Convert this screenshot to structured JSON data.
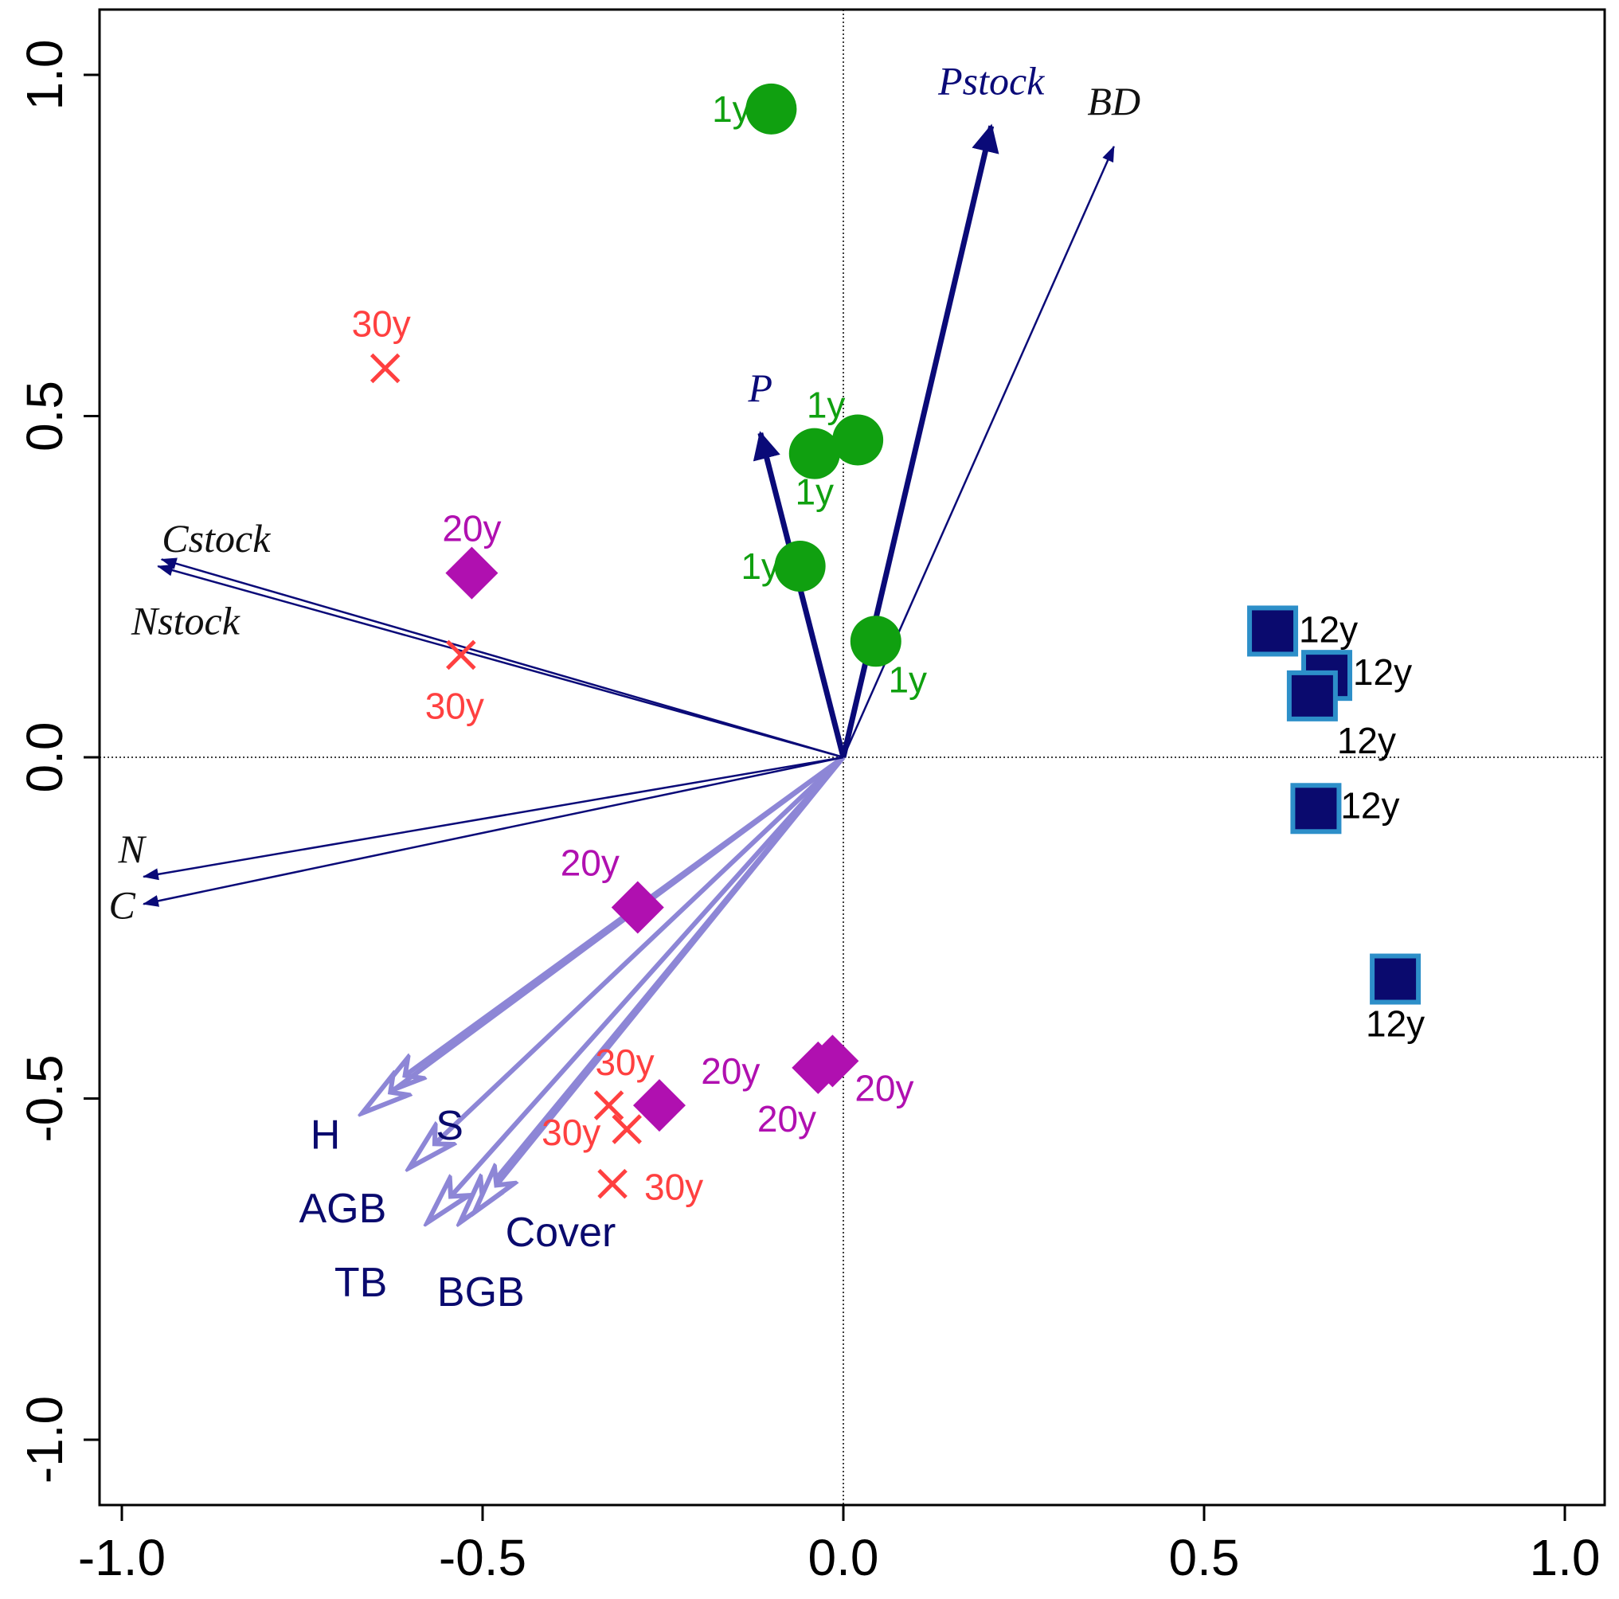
{
  "chart_data": {
    "type": "scatter",
    "title": "",
    "xlabel": "",
    "ylabel": "",
    "xlim": [
      -1.03,
      1.05
    ],
    "ylim": [
      -1.03,
      1.03
    ],
    "x_ticks": [
      -1.0,
      -0.5,
      0.0,
      0.5,
      1.0
    ],
    "x_tick_labels": [
      "-1.0",
      "-0.5",
      "0.0",
      "0.5",
      "1.0"
    ],
    "y_ticks": [
      -1.0,
      -0.5,
      0.0,
      0.5,
      1.0
    ],
    "y_tick_labels": [
      "-1.0",
      "-0.5",
      "0.0",
      "0.5",
      "1.0"
    ],
    "reference_lines": {
      "x": 0.0,
      "y": 0.0
    },
    "colors": {
      "group_1y": "#10a010",
      "group_12y": "#0a0a6e",
      "group_12y_edge": "#2d8fc9",
      "group_20y": "#b010b0",
      "group_30y": "#ff4040",
      "env_arrow": "#0a0a78",
      "veg_arrow": "#8d86d6"
    },
    "series": [
      {
        "name": "1y",
        "marker": "circle",
        "points": [
          {
            "x": -0.1,
            "y": 0.95,
            "label": "1y"
          },
          {
            "x": 0.02,
            "y": 0.465,
            "label": "1y"
          },
          {
            "x": -0.04,
            "y": 0.445,
            "label": "1y"
          },
          {
            "x": -0.06,
            "y": 0.28,
            "label": "1y"
          },
          {
            "x": 0.045,
            "y": 0.17,
            "label": "1y"
          }
        ]
      },
      {
        "name": "12y",
        "marker": "square",
        "points": [
          {
            "x": 0.595,
            "y": 0.185,
            "label": "12y"
          },
          {
            "x": 0.67,
            "y": 0.12,
            "label": "12y"
          },
          {
            "x": 0.65,
            "y": 0.09,
            "label": "12y"
          },
          {
            "x": 0.655,
            "y": -0.075,
            "label": "12y"
          },
          {
            "x": 0.765,
            "y": -0.325,
            "label": "12y"
          }
        ]
      },
      {
        "name": "20y",
        "marker": "diamond",
        "points": [
          {
            "x": -0.515,
            "y": 0.27,
            "label": "20y"
          },
          {
            "x": -0.285,
            "y": -0.22,
            "label": "20y"
          },
          {
            "x": -0.035,
            "y": -0.455,
            "label": "20y"
          },
          {
            "x": -0.015,
            "y": -0.445,
            "label": "20y"
          },
          {
            "x": -0.255,
            "y": -0.51,
            "label": "20y"
          }
        ]
      },
      {
        "name": "30y",
        "marker": "x",
        "points": [
          {
            "x": -0.635,
            "y": 0.57,
            "label": "30y"
          },
          {
            "x": -0.53,
            "y": 0.15,
            "label": "30y"
          },
          {
            "x": -0.325,
            "y": -0.51,
            "label": "30y"
          },
          {
            "x": -0.3,
            "y": -0.545,
            "label": "30y"
          },
          {
            "x": -0.32,
            "y": -0.625,
            "label": "30y"
          }
        ]
      }
    ],
    "env_vectors": [
      {
        "name": "Pstock",
        "x": 0.205,
        "y": 0.925,
        "bold": true
      },
      {
        "name": "BD",
        "x": 0.375,
        "y": 0.895,
        "bold": false
      },
      {
        "name": "P",
        "x": -0.115,
        "y": 0.475,
        "bold": true
      },
      {
        "name": "Cstock",
        "x": -0.95,
        "y": 0.28,
        "bold": false
      },
      {
        "name": "Nstock",
        "x": -0.945,
        "y": 0.29,
        "bold": false
      },
      {
        "name": "N",
        "x": -0.97,
        "y": -0.175,
        "bold": false
      },
      {
        "name": "C",
        "x": -0.97,
        "y": -0.215,
        "bold": false
      }
    ],
    "veg_vectors": [
      {
        "name": "S",
        "x": -0.645,
        "y": -0.495
      },
      {
        "name": "H",
        "x": -0.665,
        "y": -0.52
      },
      {
        "name": "AGB",
        "x": -0.6,
        "y": -0.6
      },
      {
        "name": "TB",
        "x": -0.575,
        "y": -0.68
      },
      {
        "name": "BGB",
        "x": -0.53,
        "y": -0.68
      },
      {
        "name": "Cover",
        "x": -0.51,
        "y": -0.665
      }
    ]
  }
}
